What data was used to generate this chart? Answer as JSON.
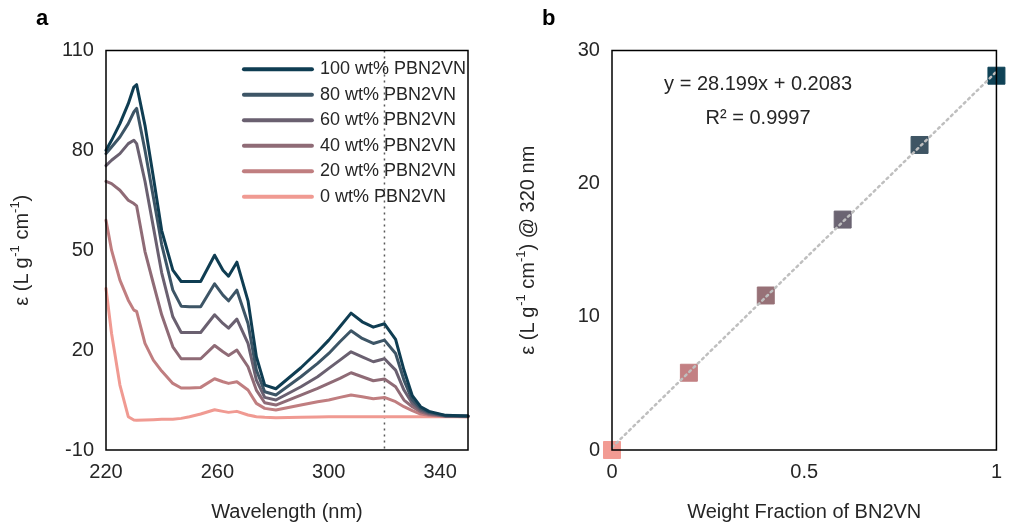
{
  "chart_data": [
    {
      "type": "line",
      "title": "a",
      "xlabel": "Wavelength (nm)",
      "ylabel": "ε (L g$^{-1}$ cm$^{-1}$)",
      "legend": "top right",
      "grid": false,
      "marker": "none",
      "line_style": "solid",
      "xlim": [
        220,
        350
      ],
      "xticks": [
        220,
        260,
        300,
        340
      ],
      "ylim": [
        -10,
        110
      ],
      "yticks": [
        -10,
        20,
        50,
        80,
        110
      ],
      "x": [
        220,
        222,
        225,
        228,
        230,
        231,
        234,
        237,
        240,
        244,
        247,
        250,
        254,
        259,
        262,
        264,
        267,
        271,
        274,
        277,
        281,
        290,
        296,
        300,
        304,
        308,
        312,
        316,
        320,
        324,
        327,
        330,
        333,
        336,
        342,
        350
      ],
      "ref_lines": [
        {
          "axis": "x",
          "value": 320,
          "color": "#595959",
          "line_style": "dotted"
        }
      ],
      "series": [
        {
          "name": "100 wt% PBN2VN",
          "color": "#0f3d52",
          "values": [
            80,
            83,
            88,
            94,
            99,
            99.7,
            87.5,
            72,
            55.9,
            44,
            40.6,
            40.6,
            40.6,
            48.5,
            44,
            42.2,
            46.4,
            34.8,
            18,
            9.5,
            8.4,
            14.7,
            19.5,
            23,
            27,
            31.1,
            28.5,
            26.9,
            27.9,
            23.2,
            14,
            6.3,
            3,
            1.6,
            0.4,
            0.2
          ]
        },
        {
          "name": "80 wt% PBN2VN",
          "color": "#3d5566",
          "values": [
            79,
            81,
            84,
            88,
            91.5,
            92.6,
            80,
            66,
            51.7,
            38,
            33.2,
            33,
            33,
            39.9,
            36.5,
            34.8,
            38,
            28,
            14,
            7.5,
            6.5,
            12,
            16,
            19,
            22.5,
            25.8,
            23.5,
            22,
            23,
            19,
            11,
            5,
            2.5,
            1.3,
            0.3,
            0.2
          ]
        },
        {
          "name": "60 wt% PBN2VN",
          "color": "#6a6070",
          "values": [
            75.4,
            77,
            79,
            82,
            83,
            82,
            70.7,
            57,
            43.2,
            30,
            25.3,
            25.3,
            25.3,
            30.6,
            28,
            26.6,
            29.3,
            22,
            11,
            5.8,
            5,
            9,
            12,
            14.5,
            17,
            19.5,
            18,
            16.5,
            17.4,
            14,
            8,
            4,
            2,
            1,
            0.2,
            0.1
          ]
        },
        {
          "name": "40 wt% PBN2VN",
          "color": "#8f6b76",
          "values": [
            70.7,
            70,
            68,
            65,
            64,
            63.3,
            49.6,
            40,
            30.6,
            21,
            17.4,
            17.4,
            17.4,
            21.4,
            19.5,
            18.4,
            20,
            15,
            8,
            4.2,
            3.5,
            6.5,
            8.5,
            10,
            11.5,
            13.2,
            12,
            10.8,
            11.3,
            9,
            5,
            3,
            1.5,
            0.7,
            0.1,
            0.1
          ]
        },
        {
          "name": "20 wt% PBN2VN",
          "color": "#c07e80",
          "values": [
            59,
            50,
            41,
            35,
            32,
            31.6,
            22,
            17,
            13.7,
            10,
            8.6,
            8.6,
            8.8,
            11.4,
            10.5,
            10,
            10.5,
            8,
            4,
            2.5,
            2,
            3.5,
            4.5,
            5,
            5.8,
            6.5,
            6,
            5.4,
            5.8,
            4.5,
            3,
            1.8,
            0.8,
            0.4,
            0.1,
            0
          ]
        },
        {
          "name": "0 wt% PBN2VN",
          "color": "#f09a92",
          "values": [
            38.5,
            25,
            9.5,
            0,
            -1,
            -1.1,
            -1,
            -0.9,
            -0.8,
            -0.8,
            -0.5,
            0,
            0.8,
            2.1,
            1.6,
            1.3,
            1.6,
            0.5,
            0,
            -0.2,
            -0.3,
            -0.2,
            -0.1,
            0,
            0,
            0,
            0,
            0,
            0,
            0,
            0,
            0,
            0,
            0,
            0,
            0
          ]
        }
      ]
    },
    {
      "type": "scatter",
      "title": "b",
      "xlabel": "Weight Fraction of BN2VN",
      "ylabel": "ε (L g$^{-1}$ cm$^{-1}$) @ 320 nm",
      "grid": false,
      "legend": false,
      "xlim": [
        0,
        1
      ],
      "xticks": [
        0,
        0.5,
        1
      ],
      "ylim": [
        0,
        30
      ],
      "yticks": [
        0,
        10,
        20,
        30
      ],
      "annotations": [
        "y = 28.199x + 0.2083",
        "R² = 0.9997"
      ],
      "series": [
        {
          "type": "scatter",
          "marker": "square",
          "x": [
            0,
            0.2,
            0.4,
            0.6,
            0.8,
            1
          ],
          "values": [
            0,
            5.8,
            11.6,
            17.3,
            22.9,
            28.1
          ],
          "colors": [
            "#f29b93",
            "#c38083",
            "#977177",
            "#6b6472",
            "#3f5564",
            "#0f4256"
          ]
        },
        {
          "type": "line",
          "marker": "none",
          "line_style": "dotted",
          "color": "#bfbfbf",
          "x": [
            0,
            1
          ],
          "values": [
            0.2,
            28.4
          ]
        }
      ]
    }
  ]
}
